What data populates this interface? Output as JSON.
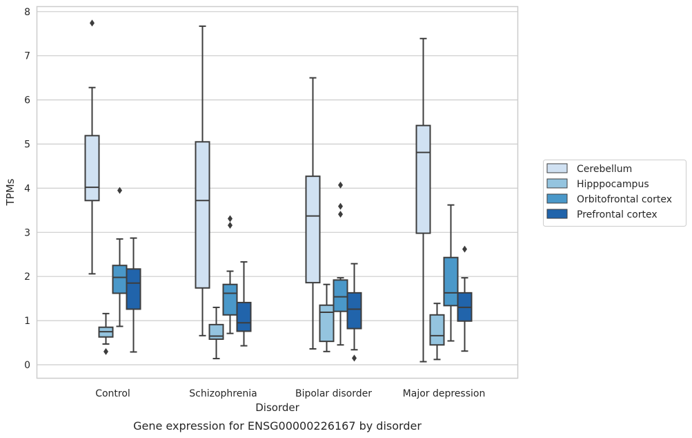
{
  "chart_data": {
    "type": "box",
    "caption": "Gene expression for ENSG00000226167 by disorder",
    "xlabel": "Disorder",
    "ylabel": "TPMs",
    "ylim": [
      -0.3,
      8.1
    ],
    "yticks": [
      "0",
      "1",
      "2",
      "3",
      "4",
      "5",
      "6",
      "7",
      "8"
    ],
    "grid": true,
    "legend_position": "right",
    "categories": [
      "Control",
      "Schizophrenia",
      "Bipolar disorder",
      "Major depression"
    ],
    "series": [
      {
        "name": "Cerebellum",
        "color": "#d0e1f2",
        "boxes": [
          {
            "whislo": 2.06,
            "q1": 3.72,
            "med": 4.02,
            "q3": 5.19,
            "whishi": 6.28,
            "fliers": [
              7.74
            ]
          },
          {
            "whislo": 0.66,
            "q1": 1.74,
            "med": 3.72,
            "q3": 5.05,
            "whishi": 7.67,
            "fliers": []
          },
          {
            "whislo": 0.36,
            "q1": 1.86,
            "med": 3.37,
            "q3": 4.27,
            "whishi": 6.5,
            "fliers": []
          },
          {
            "whislo": 0.07,
            "q1": 2.98,
            "med": 4.81,
            "q3": 5.42,
            "whishi": 7.39,
            "fliers": []
          }
        ]
      },
      {
        "name": "Hipppocampus",
        "color": "#94c4df",
        "boxes": [
          {
            "whislo": 0.47,
            "q1": 0.63,
            "med": 0.75,
            "q3": 0.85,
            "whishi": 1.16,
            "fliers": [
              0.3
            ]
          },
          {
            "whislo": 0.14,
            "q1": 0.58,
            "med": 0.65,
            "q3": 0.91,
            "whishi": 1.3,
            "fliers": []
          },
          {
            "whislo": 0.3,
            "q1": 0.53,
            "med": 1.19,
            "q3": 1.35,
            "whishi": 1.82,
            "fliers": []
          },
          {
            "whislo": 0.12,
            "q1": 0.45,
            "med": 0.66,
            "q3": 1.13,
            "whishi": 1.39,
            "fliers": []
          }
        ]
      },
      {
        "name": "Orbitofrontal cortex",
        "color": "#4a98c9",
        "boxes": [
          {
            "whislo": 0.87,
            "q1": 1.62,
            "med": 1.98,
            "q3": 2.25,
            "whishi": 2.85,
            "fliers": [
              3.95
            ]
          },
          {
            "whislo": 0.71,
            "q1": 1.13,
            "med": 1.62,
            "q3": 1.82,
            "whishi": 2.12,
            "fliers": [
              3.16,
              3.31
            ]
          },
          {
            "whislo": 0.45,
            "q1": 1.21,
            "med": 1.54,
            "q3": 1.92,
            "whishi": 1.97,
            "fliers": [
              3.41,
              3.59,
              4.07
            ]
          },
          {
            "whislo": 0.54,
            "q1": 1.34,
            "med": 1.63,
            "q3": 2.43,
            "whishi": 3.62,
            "fliers": []
          }
        ]
      },
      {
        "name": "Prefrontal cortex",
        "color": "#2164ab",
        "boxes": [
          {
            "whislo": 0.29,
            "q1": 1.26,
            "med": 1.85,
            "q3": 2.17,
            "whishi": 2.87,
            "fliers": []
          },
          {
            "whislo": 0.43,
            "q1": 0.76,
            "med": 0.95,
            "q3": 1.41,
            "whishi": 2.33,
            "fliers": []
          },
          {
            "whislo": 0.34,
            "q1": 0.82,
            "med": 1.26,
            "q3": 1.63,
            "whishi": 2.29,
            "fliers": [
              0.15
            ]
          },
          {
            "whislo": 0.31,
            "q1": 0.99,
            "med": 1.3,
            "q3": 1.63,
            "whishi": 1.97,
            "fliers": [
              2.62
            ]
          }
        ]
      }
    ]
  }
}
